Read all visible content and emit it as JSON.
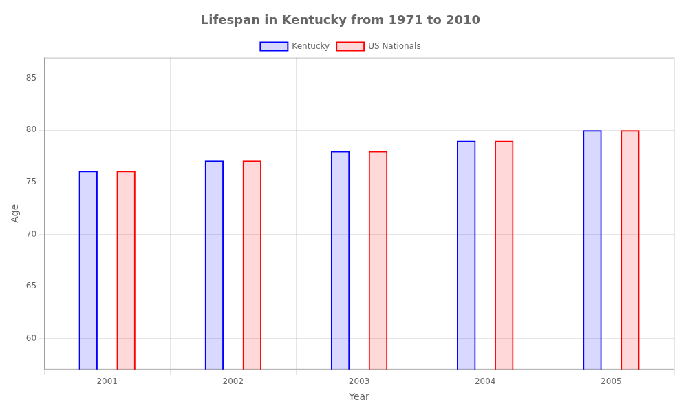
{
  "chart_data": {
    "type": "bar",
    "title": "Lifespan in Kentucky from 1971 to 2010",
    "xlabel": "Year",
    "ylabel": "Age",
    "categories": [
      "2001",
      "2002",
      "2003",
      "2004",
      "2005"
    ],
    "series": [
      {
        "name": "Kentucky",
        "color": "#0000ff",
        "values": [
          76.1,
          77.1,
          78.0,
          79.0,
          80.0
        ]
      },
      {
        "name": "US Nationals",
        "color": "#ff0000",
        "values": [
          76.1,
          77.1,
          78.0,
          79.0,
          80.0
        ]
      }
    ],
    "ylim": [
      57,
      87
    ],
    "yticks": [
      60,
      65,
      70,
      75,
      80,
      85
    ],
    "grid": true,
    "legend": "top"
  }
}
